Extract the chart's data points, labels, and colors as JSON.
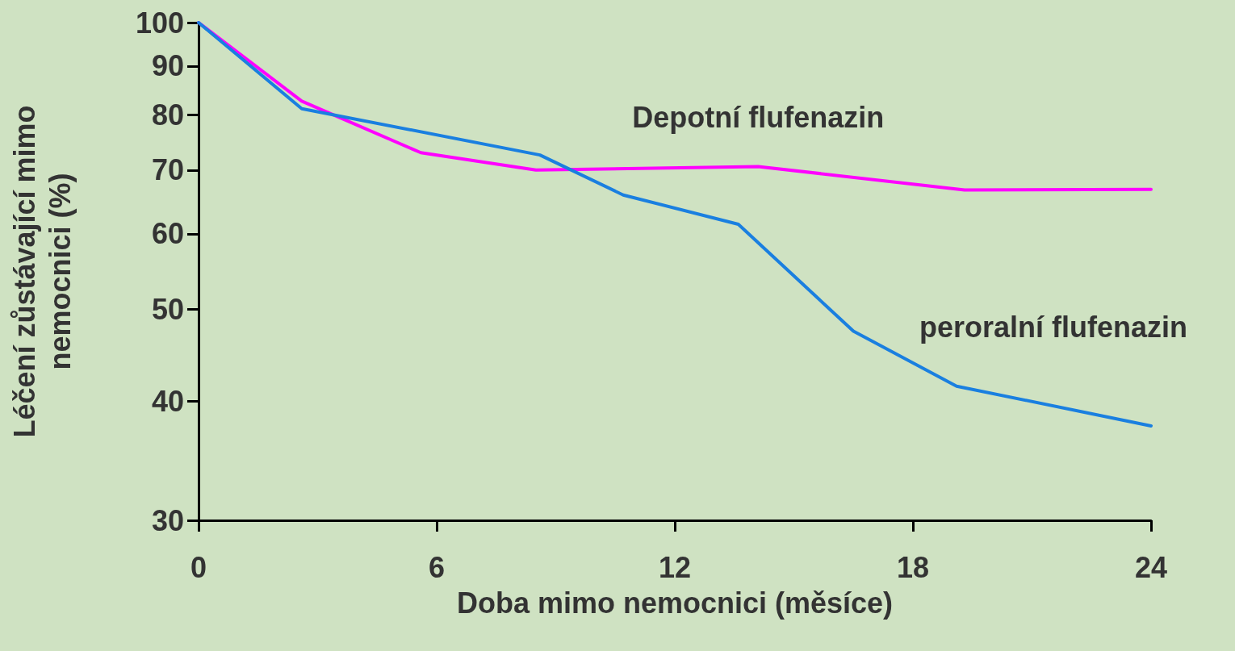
{
  "chart_data": {
    "type": "line",
    "xlabel": "Doba mimo nemocnici (měsíce)",
    "ylabel": "Léčení zůstávající mimo\nnemocnici (%)",
    "xlim": [
      0,
      24
    ],
    "xticks": [
      0,
      6,
      12,
      18,
      24
    ],
    "ylim": [
      30,
      100
    ],
    "yticks": [
      30,
      40,
      50,
      60,
      70,
      80,
      90,
      100
    ],
    "log": "y",
    "grid": false,
    "legend": false,
    "marker": "none",
    "line_style": "solid",
    "series": [
      {
        "name": "Depotní flufenazin",
        "color": "#ff00ff",
        "x": [
          0,
          2.6,
          5.6,
          8.5,
          14.1,
          19.3,
          24
        ],
        "values": [
          100,
          82.7,
          73,
          70,
          70.6,
          66.7,
          66.8
        ]
      },
      {
        "name": "peroralní flufenazin",
        "color": "#1a7fe0",
        "x": [
          0,
          2.6,
          8.6,
          10.7,
          13.6,
          16.5,
          19.1,
          24
        ],
        "values": [
          100,
          81.2,
          72.6,
          65.9,
          61.4,
          47.4,
          41.5,
          37.7
        ]
      }
    ]
  }
}
